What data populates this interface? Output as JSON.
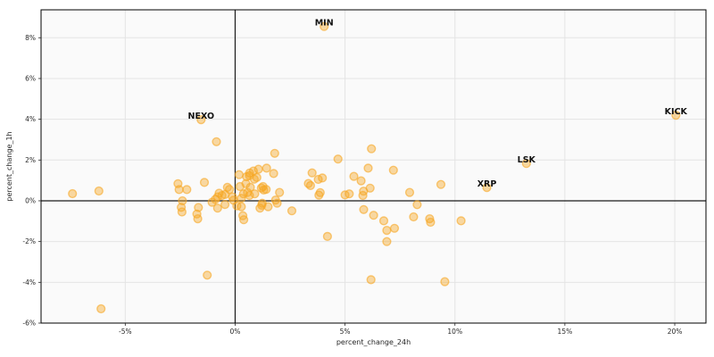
{
  "chart_data": {
    "type": "scatter",
    "title": "",
    "xlabel": "percent_change_24h",
    "ylabel": "percent_change_1h",
    "xlim": [
      -8.83,
      21.42
    ],
    "ylim": [
      -6.0,
      9.37
    ],
    "x_ticks": [
      -5,
      0,
      5,
      10,
      15,
      20
    ],
    "y_ticks": [
      8,
      6,
      4,
      2,
      0,
      -2,
      -4,
      -6
    ],
    "tick_suffix": "%",
    "grid": true,
    "zero_lines": true,
    "legend": "none",
    "colors": {
      "plot_bg": "#fafafa",
      "grid": "#e4e4e4",
      "zero_line": "#1a1a1a",
      "border": "#000000",
      "tick": "#262626",
      "marker": "#f6a623"
    },
    "marker": {
      "radius": 4.4,
      "fill_opacity": 0.42,
      "stroke_opacity": 0.6,
      "stroke_width": 1.4
    },
    "labeled_points": [
      {
        "label": "MIN",
        "x": 4.05,
        "y": 8.55
      },
      {
        "label": "NEXO",
        "x": -1.55,
        "y": 3.98
      },
      {
        "label": "KICK",
        "x": 20.05,
        "y": 4.2
      },
      {
        "label": "LSK",
        "x": 13.25,
        "y": 1.83
      },
      {
        "label": "XRP",
        "x": 11.45,
        "y": 0.65
      }
    ],
    "points": [
      [
        -7.4,
        0.35
      ],
      [
        -6.2,
        0.48
      ],
      [
        -6.1,
        -5.3
      ],
      [
        -2.6,
        0.84
      ],
      [
        -2.55,
        0.55
      ],
      [
        -2.2,
        0.55
      ],
      [
        -1.4,
        0.9
      ],
      [
        -2.4,
        0.0
      ],
      [
        -2.45,
        -0.32
      ],
      [
        -2.42,
        -0.55
      ],
      [
        -1.67,
        -0.33
      ],
      [
        -1.74,
        -0.65
      ],
      [
        -1.7,
        -0.88
      ],
      [
        -1.27,
        -3.65
      ],
      [
        -0.85,
        2.9
      ],
      [
        -1.05,
        -0.07
      ],
      [
        -0.9,
        0.07
      ],
      [
        -0.8,
        0.19
      ],
      [
        -0.73,
        0.37
      ],
      [
        -0.6,
        0.26
      ],
      [
        -0.46,
        0.31
      ],
      [
        -0.35,
        0.66
      ],
      [
        -0.26,
        0.56
      ],
      [
        -0.12,
        0.19
      ],
      [
        -0.08,
        0.03
      ],
      [
        -0.8,
        -0.36
      ],
      [
        -0.46,
        -0.18
      ],
      [
        0.18,
        1.28
      ],
      [
        0.22,
        0.7
      ],
      [
        0.52,
        1.18
      ],
      [
        0.65,
        1.24
      ],
      [
        0.87,
        1.06
      ],
      [
        0.49,
        0.84
      ],
      [
        0.69,
        0.66
      ],
      [
        0.56,
        0.41
      ],
      [
        0.38,
        0.34
      ],
      [
        0.28,
        0.12
      ],
      [
        0.65,
        0.26
      ],
      [
        0.89,
        0.34
      ],
      [
        0.28,
        -0.29
      ],
      [
        0.35,
        -0.73
      ],
      [
        0.66,
        1.36
      ],
      [
        0.83,
        1.46
      ],
      [
        0.08,
        -0.25
      ],
      [
        0.39,
        -0.93
      ],
      [
        1.06,
        1.55
      ],
      [
        1.43,
        1.6
      ],
      [
        0.99,
        1.14
      ],
      [
        1.27,
        0.7
      ],
      [
        1.41,
        0.56
      ],
      [
        1.19,
        0.63
      ],
      [
        1.3,
        0.53
      ],
      [
        1.75,
        1.34
      ],
      [
        1.23,
        -0.12
      ],
      [
        1.5,
        -0.29
      ],
      [
        1.13,
        -0.36
      ],
      [
        1.21,
        -0.22
      ],
      [
        1.91,
        -0.12
      ],
      [
        1.84,
        0.04
      ],
      [
        2.02,
        0.41
      ],
      [
        1.8,
        2.33
      ],
      [
        2.58,
        -0.49
      ],
      [
        3.5,
        1.37
      ],
      [
        3.33,
        0.85
      ],
      [
        3.43,
        0.75
      ],
      [
        3.78,
        1.05
      ],
      [
        3.97,
        1.12
      ],
      [
        3.87,
        0.4
      ],
      [
        3.81,
        0.28
      ],
      [
        4.68,
        2.05
      ],
      [
        4.2,
        -1.75
      ],
      [
        5.4,
        1.2
      ],
      [
        5.73,
        0.98
      ],
      [
        6.05,
        1.6
      ],
      [
        6.2,
        2.55
      ],
      [
        7.2,
        1.5
      ],
      [
        6.14,
        0.62
      ],
      [
        5.84,
        0.47
      ],
      [
        5.81,
        0.26
      ],
      [
        5.0,
        0.29
      ],
      [
        5.19,
        0.34
      ],
      [
        5.85,
        -0.43
      ],
      [
        6.3,
        -0.71
      ],
      [
        6.76,
        -0.98
      ],
      [
        6.9,
        -1.45
      ],
      [
        7.25,
        -1.35
      ],
      [
        6.9,
        -2.0
      ],
      [
        6.18,
        -3.87
      ],
      [
        7.94,
        0.41
      ],
      [
        8.28,
        -0.19
      ],
      [
        8.12,
        -0.79
      ],
      [
        8.85,
        -0.88
      ],
      [
        8.89,
        -1.05
      ],
      [
        9.36,
        0.8
      ],
      [
        9.54,
        -3.97
      ],
      [
        10.28,
        -0.98
      ]
    ]
  }
}
